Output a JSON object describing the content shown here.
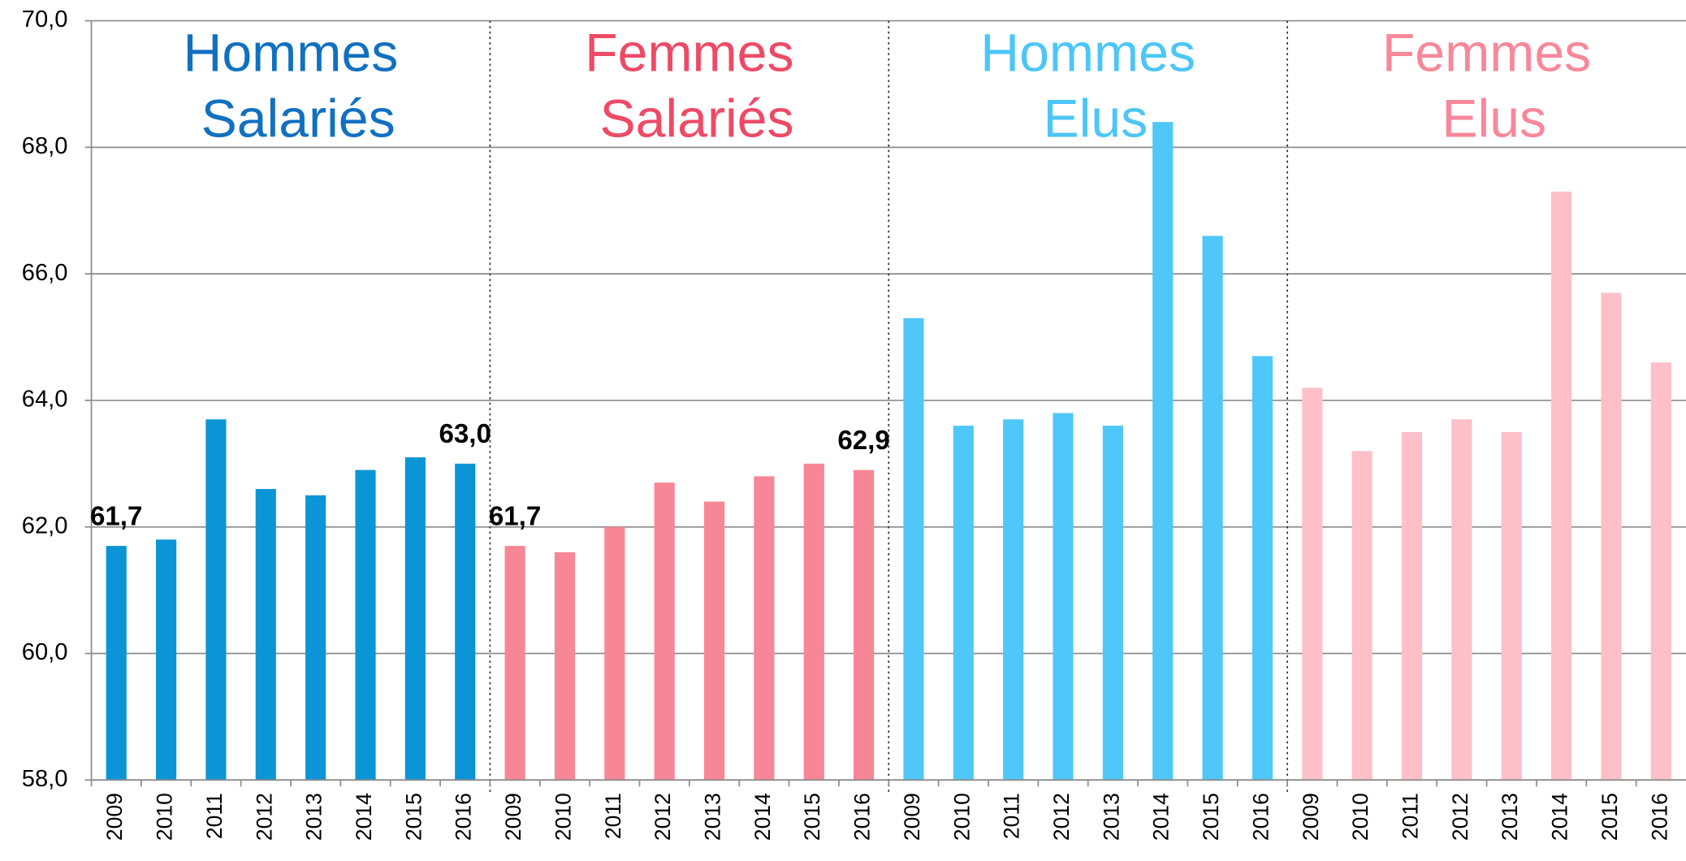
{
  "chart_data": {
    "type": "bar",
    "categories": [
      "2009",
      "2010",
      "2011",
      "2012",
      "2013",
      "2014",
      "2015",
      "2016"
    ],
    "series": [
      {
        "name": "Hommes Salariés",
        "color": "#0b95d6",
        "title_color": "#1170c0",
        "values": [
          61.7,
          61.8,
          63.7,
          62.6,
          62.5,
          62.9,
          63.1,
          63.0
        ],
        "value_labels": [
          "61,7",
          null,
          null,
          null,
          null,
          null,
          null,
          "63,0"
        ]
      },
      {
        "name": "Femmes Salariés",
        "color": "#f78696",
        "title_color": "#ee4a66",
        "values": [
          61.7,
          61.6,
          62.0,
          62.7,
          62.4,
          62.8,
          63.0,
          62.9
        ],
        "value_labels": [
          "61,7",
          null,
          null,
          null,
          null,
          null,
          null,
          "62,9"
        ]
      },
      {
        "name": "Hommes Elus",
        "color": "#4fc8f9",
        "title_color": "#4cc6f7",
        "values": [
          65.3,
          63.6,
          63.7,
          63.8,
          63.6,
          68.4,
          66.6,
          64.7
        ]
      },
      {
        "name": "Femmes Elus",
        "color": "#fdc0c9",
        "title_color": "#f7889a",
        "values": [
          64.2,
          63.2,
          63.5,
          63.7,
          63.5,
          67.3,
          65.7,
          64.6
        ]
      }
    ],
    "ylim": [
      58,
      70
    ],
    "yticks": [
      {
        "value": 58,
        "label": "58,0"
      },
      {
        "value": 60,
        "label": "60,0"
      },
      {
        "value": 62,
        "label": "62,0"
      },
      {
        "value": 64,
        "label": "64,0"
      },
      {
        "value": 66,
        "label": "66,0"
      },
      {
        "value": 68,
        "label": "68,0"
      },
      {
        "value": 70,
        "label": "70,0"
      }
    ],
    "grid": true
  }
}
